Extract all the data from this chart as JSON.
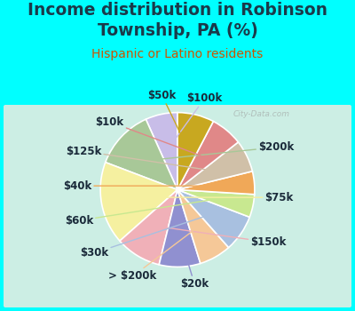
{
  "title": "Income distribution in Robinson\nTownship, PA (%)",
  "subtitle": "Hispanic or Latino residents",
  "watermark": "City-Data.com",
  "bg_outer": "#00FFFF",
  "bg_inner_top": "#d0f0ee",
  "bg_inner_bottom": "#e8f5e0",
  "title_color": "#1a3a4a",
  "subtitle_color": "#cc5500",
  "title_fontsize": 13.5,
  "subtitle_fontsize": 10,
  "label_fontsize": 8.5,
  "labels": [
    "$100k",
    "$200k",
    "$75k",
    "$150k",
    "$20k",
    "> $200k",
    "$30k",
    "$60k",
    "$40k",
    "$125k",
    "$10k",
    "$50k"
  ],
  "values": [
    7,
    13,
    18,
    10,
    9,
    7,
    8,
    5,
    5,
    7,
    7,
    8
  ],
  "colors": [
    "#c8bde8",
    "#a8c898",
    "#f5f0a0",
    "#f0b0b8",
    "#9090d0",
    "#f5c898",
    "#a8c0e0",
    "#c8e890",
    "#f0a858",
    "#d0c0a8",
    "#e08888",
    "#c8a820"
  ],
  "line_colors": [
    "#c8bde8",
    "#a8c898",
    "#f5f0a0",
    "#f0b0b8",
    "#9090d0",
    "#f5c898",
    "#a8c0e0",
    "#c8e890",
    "#f0a858",
    "#d0c0a8",
    "#e08888",
    "#c8a820"
  ]
}
